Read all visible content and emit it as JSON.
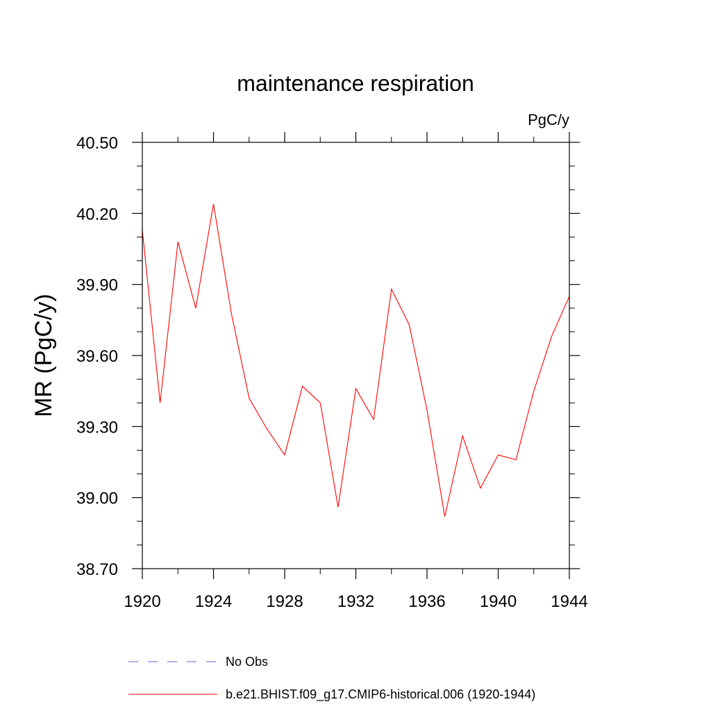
{
  "chart_data": {
    "type": "line",
    "title": "maintenance respiration",
    "units": "PgC/y",
    "xlabel": "",
    "ylabel": "MR  (PgC/y)",
    "xlim": [
      1920,
      1944
    ],
    "ylim": [
      38.7,
      40.5
    ],
    "x_ticks": [
      1920,
      1924,
      1928,
      1932,
      1936,
      1940,
      1944
    ],
    "x_tick_labels": [
      "1920",
      "1924",
      "1928",
      "1932",
      "1936",
      "1940",
      "1944"
    ],
    "y_ticks": [
      38.7,
      39.0,
      39.3,
      39.6,
      39.9,
      40.2,
      40.5
    ],
    "y_tick_labels": [
      "38.70",
      "39.00",
      "39.30",
      "39.60",
      "39.90",
      "40.20",
      "40.50"
    ],
    "series": [
      {
        "name": "b.e21.BHIST.f09_g17.CMIP6-historical.006 (1920-1944)",
        "color": "#ff0000",
        "style": "solid",
        "x": [
          1920,
          1921,
          1922,
          1923,
          1924,
          1925,
          1926,
          1927,
          1928,
          1929,
          1930,
          1931,
          1932,
          1933,
          1934,
          1935,
          1936,
          1937,
          1938,
          1939,
          1940,
          1941,
          1942,
          1943,
          1944
        ],
        "values": [
          40.13,
          39.4,
          40.08,
          39.8,
          40.24,
          39.78,
          39.42,
          39.29,
          39.18,
          39.47,
          39.4,
          38.96,
          39.46,
          39.33,
          39.88,
          39.73,
          39.37,
          38.92,
          39.26,
          39.04,
          39.18,
          39.16,
          39.45,
          39.68,
          39.85
        ]
      }
    ],
    "legend": [
      {
        "label": "No Obs",
        "color": "#6a5acd",
        "style": "dashed"
      },
      {
        "label": "b.e21.BHIST.f09_g17.CMIP6-historical.006 (1920-1944)",
        "color": "#ff0000",
        "style": "solid"
      }
    ]
  }
}
